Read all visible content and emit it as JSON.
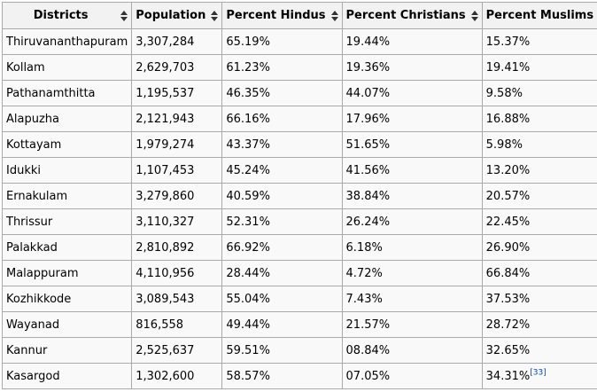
{
  "table": {
    "columns": [
      {
        "key": "district",
        "label": "Districts"
      },
      {
        "key": "population",
        "label": "Population"
      },
      {
        "key": "hindus",
        "label": "Percent Hindus"
      },
      {
        "key": "christians",
        "label": "Percent Christians"
      },
      {
        "key": "muslims",
        "label": "Percent Muslims"
      }
    ],
    "rows": [
      {
        "district": "Thiruvananthapuram",
        "population": "3,307,284",
        "hindus": "65.19%",
        "christians": "19.44%",
        "muslims": "15.37%"
      },
      {
        "district": "Kollam",
        "population": "2,629,703",
        "hindus": "61.23%",
        "christians": "19.36%",
        "muslims": "19.41%"
      },
      {
        "district": "Pathanamthitta",
        "population": "1,195,537",
        "hindus": "46.35%",
        "christians": "44.07%",
        "muslims": "9.58%"
      },
      {
        "district": "Alapuzha",
        "population": "2,121,943",
        "hindus": "66.16%",
        "christians": "17.96%",
        "muslims": "16.88%"
      },
      {
        "district": "Kottayam",
        "population": "1,979,274",
        "hindus": "43.37%",
        "christians": "51.65%",
        "muslims": "5.98%"
      },
      {
        "district": "Idukki",
        "population": "1,107,453",
        "hindus": "45.24%",
        "christians": "41.56%",
        "muslims": "13.20%"
      },
      {
        "district": "Ernakulam",
        "population": "3,279,860",
        "hindus": "40.59%",
        "christians": "38.84%",
        "muslims": "20.57%"
      },
      {
        "district": "Thrissur",
        "population": "3,110,327",
        "hindus": "52.31%",
        "christians": "26.24%",
        "muslims": "22.45%"
      },
      {
        "district": "Palakkad",
        "population": "2,810,892",
        "hindus": "66.92%",
        "christians": "6.18%",
        "muslims": "26.90%"
      },
      {
        "district": "Malappuram",
        "population": "4,110,956",
        "hindus": "28.44%",
        "christians": "4.72%",
        "muslims": "66.84%"
      },
      {
        "district": "Kozhikkode",
        "population": "3,089,543",
        "hindus": "55.04%",
        "christians": "7.43%",
        "muslims": "37.53%"
      },
      {
        "district": "Wayanad",
        "population": "816,558",
        "hindus": "49.44%",
        "christians": "21.57%",
        "muslims": "28.72%"
      },
      {
        "district": "Kannur",
        "population": "2,525,637",
        "hindus": "59.51%",
        "christians": "08.84%",
        "muslims": "32.65%"
      },
      {
        "district": "Kasargod",
        "population": "1,302,600",
        "hindus": "58.57%",
        "christians": "07.05%",
        "muslims": "34.31%",
        "muslims_ref": "[33]"
      }
    ]
  },
  "colors": {
    "border": "#aaaaaa",
    "header_bg": "#f2f2f2",
    "cell_bg": "#f9f9f9",
    "link": "#0645ad"
  },
  "icons": {
    "sort": "sort-arrows-icon"
  }
}
